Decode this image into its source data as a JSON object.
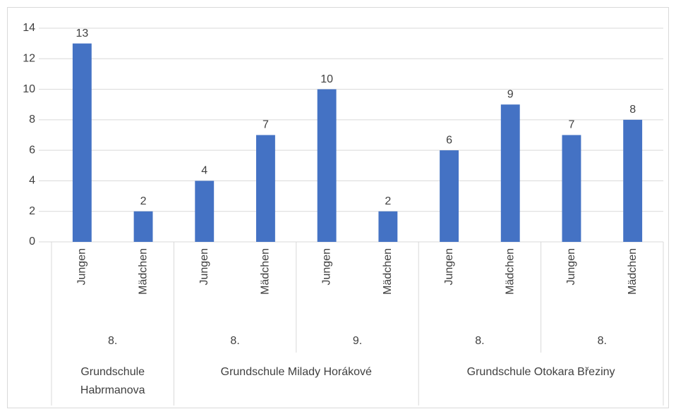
{
  "chart_data": {
    "type": "bar",
    "color": "#4472c4",
    "groups": [
      {
        "label": "Grundschule Habrmanova",
        "groups": [
          {
            "label": "8.",
            "categories": [
              "Jungen",
              "Mädchen"
            ]
          }
        ]
      },
      {
        "label": "Grundschule Milady Horákové",
        "groups": [
          {
            "label": "8.",
            "categories": [
              "Jungen",
              "Mädchen"
            ]
          },
          {
            "label": "9.",
            "categories": [
              "Jungen",
              "Mädchen"
            ]
          }
        ]
      },
      {
        "label": "Grundschule Otokara Březiny",
        "groups": [
          {
            "label": "8.",
            "categories": [
              "Jungen",
              "Mädchen"
            ]
          },
          {
            "label": "8.",
            "categories": [
              "Jungen",
              "Mädchen"
            ]
          }
        ]
      }
    ],
    "values": [
      13,
      2,
      4,
      7,
      10,
      2,
      6,
      9,
      7,
      8
    ],
    "ylim": [
      0,
      14
    ],
    "yticks": [
      0,
      2,
      4,
      6,
      8,
      10,
      12,
      14
    ],
    "grid": true
  }
}
